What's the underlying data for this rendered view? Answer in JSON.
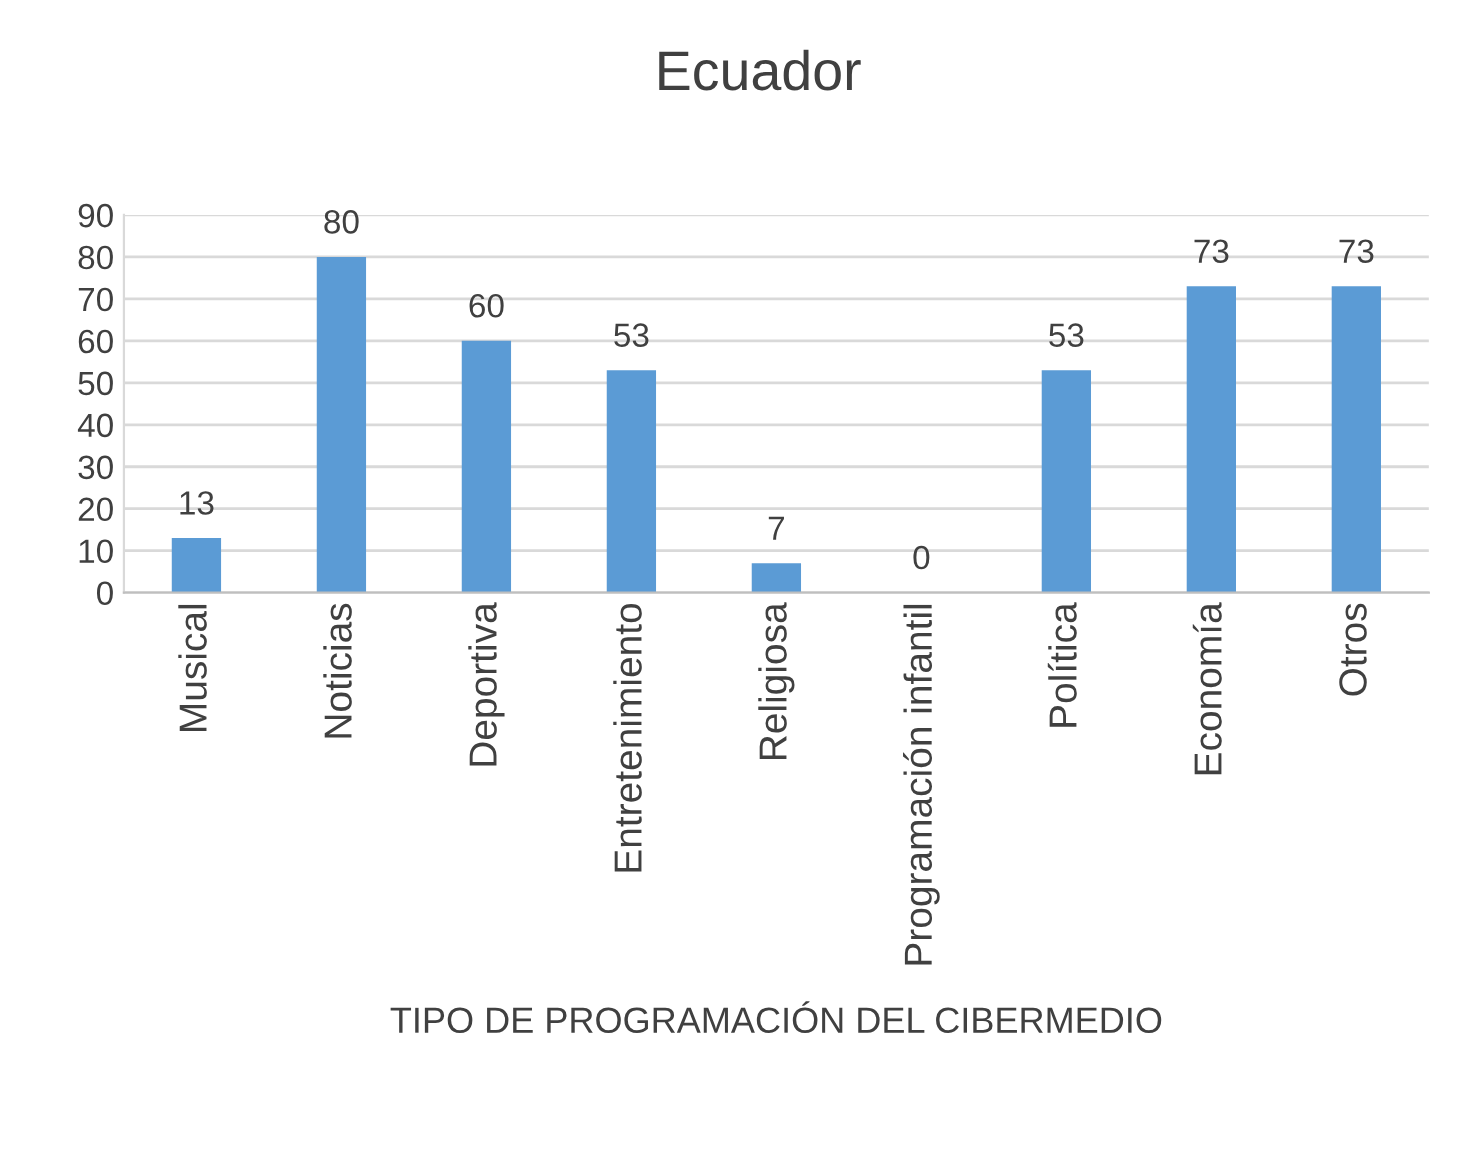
{
  "chart_data": {
    "type": "bar",
    "title": "Ecuador",
    "xlabel": "TIPO DE PROGRAMACIÓN DEL CIBERMEDIO",
    "categories": [
      "Musical",
      "Noticias",
      "Deportiva",
      "Entretenimiento",
      "Religiosa",
      "Programación infantil",
      "Política",
      "Economía",
      "Otros"
    ],
    "values": [
      13,
      80,
      60,
      53,
      7,
      0,
      53,
      73,
      73
    ],
    "color": "#5b9bd5",
    "ylim": [
      0,
      90
    ],
    "yticks": [
      0,
      10,
      20,
      30,
      40,
      50,
      60,
      70,
      80,
      90
    ],
    "grid": "y",
    "data_labels": true,
    "legend": false
  }
}
